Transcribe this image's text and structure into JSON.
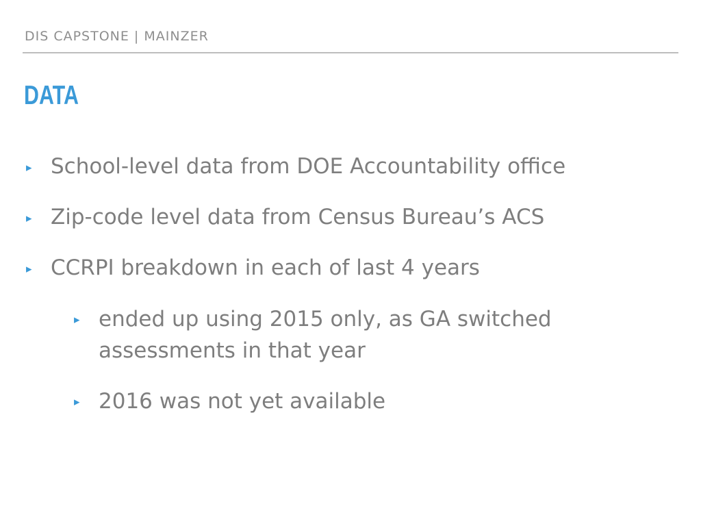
{
  "header": {
    "text": "DIS CAPSTONE | MAINZER"
  },
  "slide": {
    "title": "DATA",
    "bullets": [
      {
        "text": "School-level data from DOE Accountability office"
      },
      {
        "text": "Zip-code level data from Census Bureau’s ACS"
      },
      {
        "text": "CCRPI breakdown in each of last 4 years"
      }
    ],
    "sub_bullets": [
      {
        "line1": "ended up using 2015 only, as GA switched",
        "line2": "assessments in that year"
      },
      {
        "text": "2016 was not yet available"
      }
    ],
    "marker_glyph": "▸"
  },
  "colors": {
    "accent": "#3b9ad8",
    "body_text": "#7e7e7e",
    "header_text": "#8e8e8e",
    "rule": "#bdbdbd"
  }
}
